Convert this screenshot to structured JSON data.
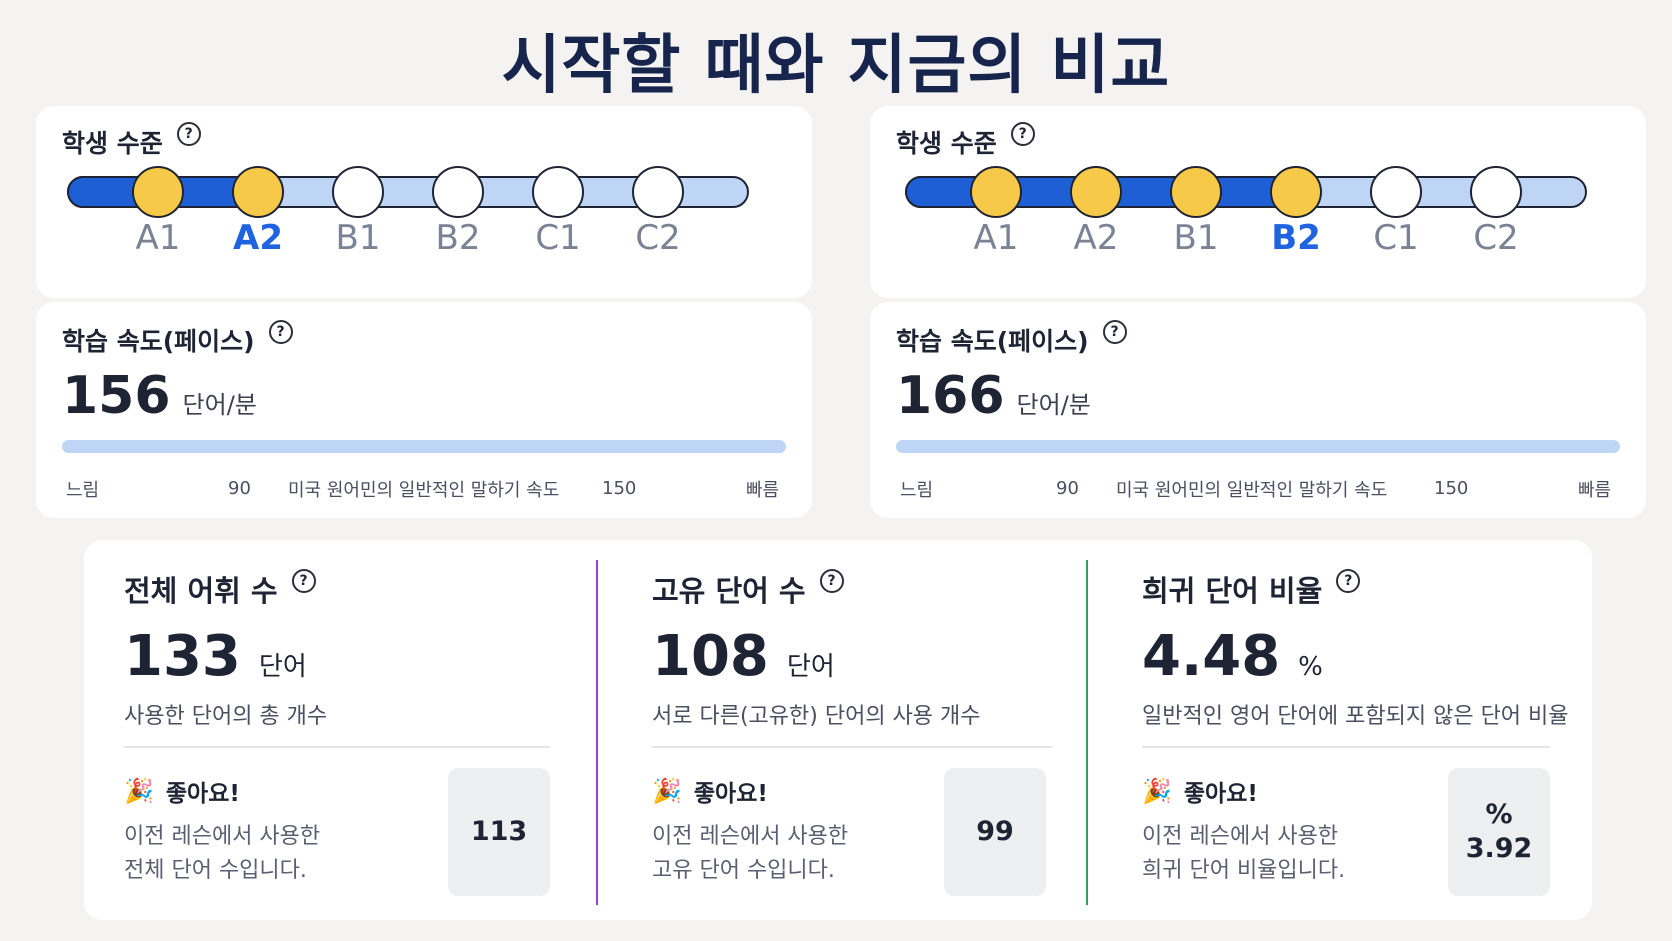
{
  "title": "시작할 때와 지금의 비교",
  "colors": {
    "track_done": "#1f5fd6",
    "track_todo": "#bfd5f5",
    "dot_done": "#f7c948",
    "current_level": "#1f63e0",
    "divider_purple": "#a33ad1",
    "divider_green": "#2fa54f"
  },
  "before": {
    "level": {
      "title": "학생 수준",
      "help_icon": "question-circle-icon",
      "levels": [
        "A1",
        "A2",
        "B1",
        "B2",
        "C1",
        "C2"
      ],
      "current": "A2",
      "current_index": 1
    },
    "pace": {
      "title": "학습 속도(페이스)",
      "value": "156",
      "unit": "단어/분",
      "scale": {
        "slow": "느림",
        "t1": "90",
        "native": "미국 원어민의 일반적인 말하기 속도",
        "t2": "150",
        "fast": "빠름"
      }
    }
  },
  "after": {
    "level": {
      "title": "학생 수준",
      "help_icon": "question-circle-icon",
      "levels": [
        "A1",
        "A2",
        "B1",
        "B2",
        "C1",
        "C2"
      ],
      "current": "B2",
      "current_index": 3
    },
    "pace": {
      "title": "학습 속도(페이스)",
      "value": "166",
      "unit": "단어/분",
      "scale": {
        "slow": "느림",
        "t1": "90",
        "native": "미국 원어민의 일반적인 말하기 속도",
        "t2": "150",
        "fast": "빠름"
      }
    }
  },
  "stats": [
    {
      "title": "전체 어휘 수",
      "value": "133",
      "unit": "단어",
      "desc": "사용한 단어의 총 개수",
      "badge": "좋아요!",
      "prev_line1": "이전 레슨에서 사용한",
      "prev_line2": "전체 단어 수입니다.",
      "prev_value": "113",
      "prev_unit": ""
    },
    {
      "title": "고유 단어 수",
      "value": "108",
      "unit": "단어",
      "desc": "서로 다른(고유한) 단어의 사용 개수",
      "badge": "좋아요!",
      "prev_line1": "이전 레슨에서 사용한",
      "prev_line2": "고유 단어 수입니다.",
      "prev_value": "99",
      "prev_unit": ""
    },
    {
      "title": "희귀 단어 비율",
      "value": "4.48",
      "unit": "%",
      "desc": "일반적인 영어 단어에 포함되지 않은 단어 비율",
      "badge": "좋아요!",
      "prev_line1": "이전 레슨에서 사용한",
      "prev_line2": "희귀 단어 비율입니다.",
      "prev_value": "3.92",
      "prev_unit": "%"
    }
  ]
}
